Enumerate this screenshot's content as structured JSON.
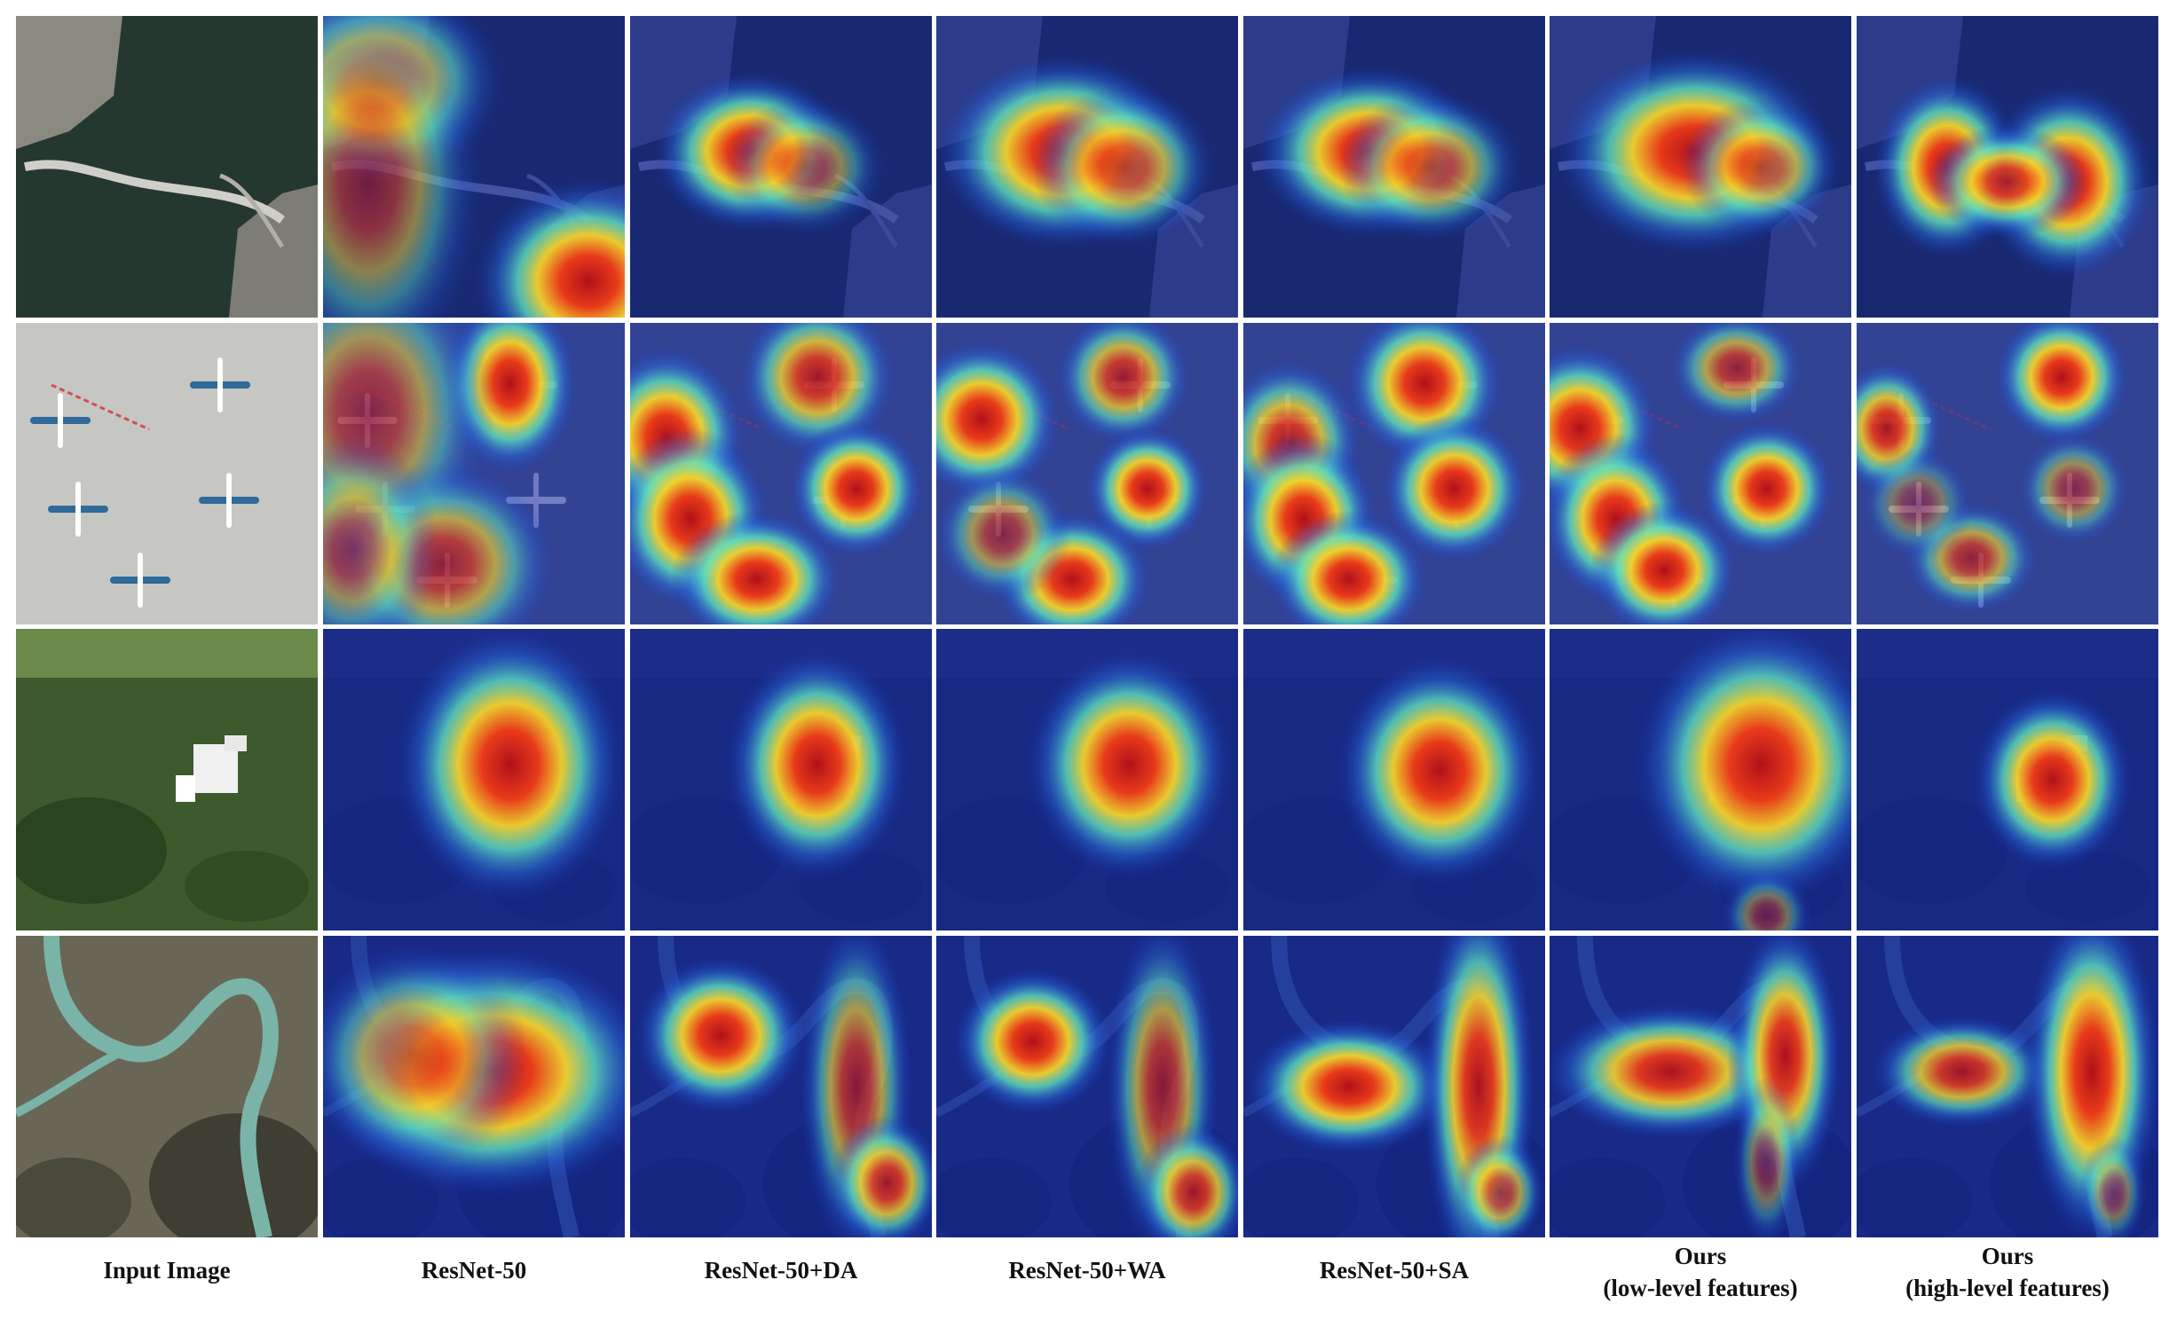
{
  "columns": [
    {
      "lines": [
        "Input Image"
      ]
    },
    {
      "lines": [
        "ResNet-50"
      ]
    },
    {
      "lines": [
        "ResNet-50+DA"
      ]
    },
    {
      "lines": [
        "ResNet-50+WA"
      ]
    },
    {
      "lines": [
        "ResNet-50+SA"
      ]
    },
    {
      "lines": [
        "Ours",
        "(low-level features)"
      ]
    },
    {
      "lines": [
        "Ours",
        "(high-level features)"
      ]
    }
  ],
  "rows": [
    {
      "scene": "bridge",
      "heat": [
        [],
        [
          [
            0.18,
            0.22,
            0.22,
            0.18,
            0.8
          ],
          [
            0.15,
            0.55,
            0.2,
            0.35,
            0.55
          ],
          [
            0.88,
            0.88,
            0.2,
            0.18,
            1.0
          ]
        ],
        [
          [
            0.4,
            0.45,
            0.17,
            0.14,
            1.0
          ],
          [
            0.58,
            0.5,
            0.14,
            0.12,
            0.55
          ]
        ],
        [
          [
            0.42,
            0.45,
            0.22,
            0.17,
            1.0
          ],
          [
            0.62,
            0.5,
            0.16,
            0.14,
            0.75
          ]
        ],
        [
          [
            0.42,
            0.45,
            0.2,
            0.15,
            1.0
          ],
          [
            0.62,
            0.5,
            0.16,
            0.13,
            0.7
          ]
        ],
        [
          [
            0.48,
            0.45,
            0.24,
            0.18,
            1.0
          ],
          [
            0.7,
            0.5,
            0.14,
            0.12,
            0.7
          ]
        ],
        [
          [
            0.3,
            0.5,
            0.13,
            0.16,
            1.0
          ],
          [
            0.7,
            0.55,
            0.15,
            0.17,
            1.0
          ],
          [
            0.5,
            0.55,
            0.14,
            0.1,
            0.9
          ]
        ]
      ]
    },
    {
      "scene": "airport",
      "heat": [
        [],
        [
          [
            0.62,
            0.2,
            0.12,
            0.16,
            1.0
          ],
          [
            0.15,
            0.3,
            0.22,
            0.3,
            0.6
          ],
          [
            0.4,
            0.8,
            0.2,
            0.18,
            0.7
          ],
          [
            0.1,
            0.75,
            0.15,
            0.2,
            0.55
          ]
        ],
        [
          [
            0.62,
            0.18,
            0.14,
            0.14,
            0.85
          ],
          [
            0.12,
            0.38,
            0.14,
            0.16,
            1.0
          ],
          [
            0.2,
            0.65,
            0.14,
            0.16,
            1.0
          ],
          [
            0.75,
            0.55,
            0.12,
            0.12,
            1.0
          ],
          [
            0.42,
            0.85,
            0.15,
            0.12,
            1.0
          ]
        ],
        [
          [
            0.62,
            0.18,
            0.12,
            0.12,
            0.8
          ],
          [
            0.15,
            0.32,
            0.14,
            0.14,
            1.0
          ],
          [
            0.7,
            0.55,
            0.11,
            0.11,
            1.0
          ],
          [
            0.45,
            0.85,
            0.14,
            0.12,
            1.0
          ],
          [
            0.22,
            0.7,
            0.12,
            0.12,
            0.6
          ]
        ],
        [
          [
            0.6,
            0.2,
            0.14,
            0.14,
            1.0
          ],
          [
            0.15,
            0.4,
            0.13,
            0.15,
            0.85
          ],
          [
            0.2,
            0.65,
            0.13,
            0.15,
            1.0
          ],
          [
            0.7,
            0.55,
            0.13,
            0.13,
            1.0
          ],
          [
            0.35,
            0.85,
            0.14,
            0.12,
            1.0
          ]
        ],
        [
          [
            0.62,
            0.15,
            0.12,
            0.1,
            0.7
          ],
          [
            0.1,
            0.35,
            0.14,
            0.15,
            1.0
          ],
          [
            0.22,
            0.65,
            0.13,
            0.15,
            1.0
          ],
          [
            0.72,
            0.55,
            0.12,
            0.12,
            1.0
          ],
          [
            0.38,
            0.82,
            0.13,
            0.12,
            1.0
          ]
        ],
        [
          [
            0.68,
            0.18,
            0.12,
            0.12,
            1.0
          ],
          [
            0.1,
            0.35,
            0.1,
            0.12,
            0.9
          ],
          [
            0.72,
            0.55,
            0.1,
            0.1,
            0.55
          ],
          [
            0.38,
            0.78,
            0.12,
            0.1,
            0.7
          ],
          [
            0.2,
            0.6,
            0.1,
            0.1,
            0.4
          ]
        ]
      ]
    },
    {
      "scene": "building",
      "heat": [
        [],
        [
          [
            0.62,
            0.45,
            0.2,
            0.24,
            1.0
          ]
        ],
        [
          [
            0.62,
            0.45,
            0.16,
            0.2,
            1.0
          ]
        ],
        [
          [
            0.64,
            0.45,
            0.18,
            0.2,
            1.0
          ]
        ],
        [
          [
            0.65,
            0.47,
            0.18,
            0.2,
            1.0
          ]
        ],
        [
          [
            0.7,
            0.45,
            0.22,
            0.25,
            1.0
          ],
          [
            0.72,
            0.95,
            0.08,
            0.08,
            0.45
          ]
        ],
        [
          [
            0.65,
            0.5,
            0.14,
            0.16,
            1.0
          ]
        ]
      ]
    },
    {
      "scene": "river",
      "heat": [
        [],
        [
          [
            0.55,
            0.45,
            0.3,
            0.22,
            1.0
          ],
          [
            0.3,
            0.4,
            0.2,
            0.2,
            0.6
          ]
        ],
        [
          [
            0.3,
            0.33,
            0.15,
            0.14,
            1.0
          ],
          [
            0.75,
            0.5,
            0.1,
            0.3,
            0.7
          ],
          [
            0.85,
            0.82,
            0.1,
            0.12,
            0.85
          ]
        ],
        [
          [
            0.32,
            0.35,
            0.14,
            0.13,
            1.0
          ],
          [
            0.75,
            0.5,
            0.1,
            0.3,
            0.7
          ],
          [
            0.85,
            0.85,
            0.1,
            0.12,
            0.85
          ]
        ],
        [
          [
            0.35,
            0.5,
            0.18,
            0.12,
            1.0
          ],
          [
            0.78,
            0.5,
            0.1,
            0.35,
            0.95
          ],
          [
            0.85,
            0.85,
            0.08,
            0.1,
            0.7
          ]
        ],
        [
          [
            0.4,
            0.45,
            0.22,
            0.12,
            0.95
          ],
          [
            0.78,
            0.4,
            0.1,
            0.24,
            0.95
          ],
          [
            0.72,
            0.75,
            0.06,
            0.15,
            0.45
          ]
        ],
        [
          [
            0.35,
            0.45,
            0.16,
            0.1,
            0.85
          ],
          [
            0.78,
            0.45,
            0.12,
            0.3,
            1.0
          ],
          [
            0.85,
            0.85,
            0.06,
            0.1,
            0.45
          ]
        ]
      ]
    }
  ]
}
